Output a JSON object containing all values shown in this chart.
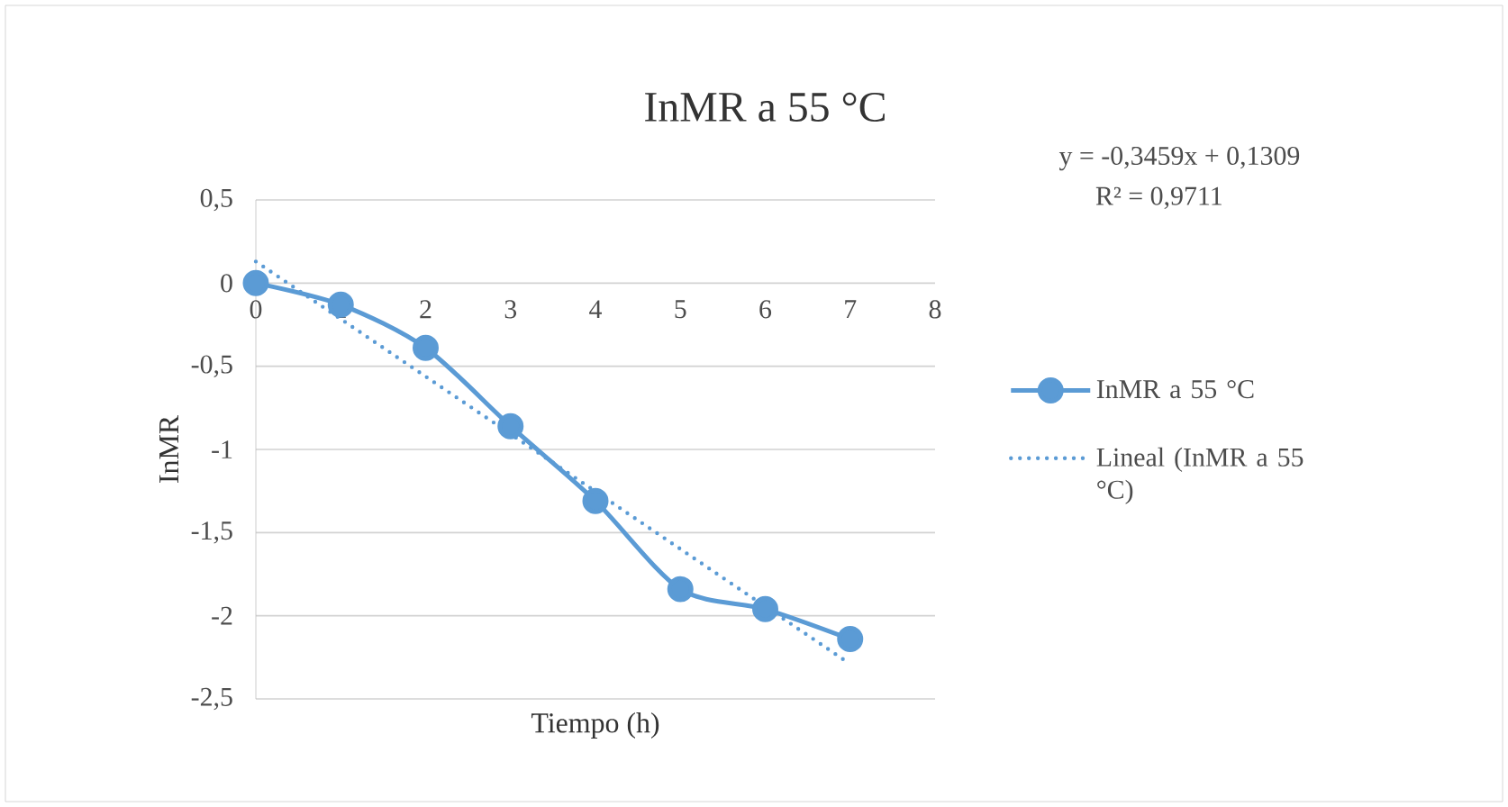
{
  "chart_data": {
    "type": "line",
    "title": "InMR a 55 °C",
    "xlabel": "Tiempo (h)",
    "ylabel": "InMR",
    "annotations": [
      "y = -0,3459x + 0,1309",
      "R² = 0,9711"
    ],
    "xlim": [
      0,
      8
    ],
    "ylim": [
      -2.5,
      0.5
    ],
    "xticks": [
      0,
      1,
      2,
      3,
      4,
      5,
      6,
      7,
      8
    ],
    "yticks": [
      {
        "value": 0.5,
        "label": "0,5"
      },
      {
        "value": 0,
        "label": "0"
      },
      {
        "value": -0.5,
        "label": "-0,5"
      },
      {
        "value": -1,
        "label": "-1"
      },
      {
        "value": -1.5,
        "label": "-1,5"
      },
      {
        "value": -2,
        "label": "-2"
      },
      {
        "value": -2.5,
        "label": "-2,5"
      }
    ],
    "grid": "y",
    "legend": "right",
    "series": [
      {
        "name": "InMR a 55 °C",
        "color": "#5b9bd5",
        "x": [
          0,
          1,
          2,
          3,
          4,
          5,
          6,
          7
        ],
        "values": [
          0,
          -0.13,
          -0.39,
          -0.86,
          -1.31,
          -1.84,
          -1.96,
          -2.14
        ],
        "marker": "circle",
        "line_style": "solid"
      },
      {
        "name": "Lineal (InMR a 55 °C)",
        "color": "#5b9bd5",
        "x": [
          0,
          7
        ],
        "values": [
          0.13,
          -2.29
        ],
        "marker": "none",
        "line_style": "dotted"
      }
    ]
  }
}
